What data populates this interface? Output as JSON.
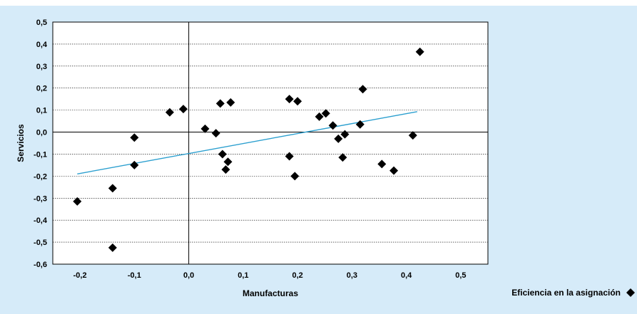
{
  "chart_data": {
    "type": "scatter",
    "xlabel": "Manufacturas",
    "ylabel": "Servicios",
    "xlim": [
      -0.25,
      0.55
    ],
    "ylim": [
      -0.6,
      0.5
    ],
    "x_ticks": [
      "-0,2",
      "-0,1",
      "0,0",
      "0,1",
      "0,2",
      "0,3",
      "0,4",
      "0,5"
    ],
    "y_ticks": [
      "0,5",
      "0,4",
      "0,3",
      "0,2",
      "0,1",
      "0,0",
      "-0,1",
      "-0,2",
      "-0,3",
      "-0,4",
      "-0,5",
      "-0,6"
    ],
    "grid": "horizontal",
    "legend": {
      "placement": "bottom-right",
      "label": "Eficiencia en la asignación"
    },
    "colors": {
      "background": "#d6ebf9",
      "plot": "#ffffff",
      "points": "#000000",
      "trend": "#2b9fcf"
    },
    "series": [
      {
        "name": "Eficiencia en la asignación",
        "points": [
          [
            -0.205,
            -0.315
          ],
          [
            -0.14,
            -0.255
          ],
          [
            -0.14,
            -0.525
          ],
          [
            -0.1,
            -0.025
          ],
          [
            -0.1,
            -0.15
          ],
          [
            -0.035,
            0.09
          ],
          [
            -0.01,
            0.105
          ],
          [
            0.03,
            0.015
          ],
          [
            0.05,
            -0.005
          ],
          [
            0.058,
            0.13
          ],
          [
            0.062,
            -0.1
          ],
          [
            0.068,
            -0.17
          ],
          [
            0.072,
            -0.135
          ],
          [
            0.077,
            0.135
          ],
          [
            0.185,
            0.15
          ],
          [
            0.185,
            -0.11
          ],
          [
            0.195,
            -0.2
          ],
          [
            0.2,
            0.14
          ],
          [
            0.24,
            0.07
          ],
          [
            0.252,
            0.085
          ],
          [
            0.265,
            0.03
          ],
          [
            0.275,
            -0.03
          ],
          [
            0.283,
            -0.115
          ],
          [
            0.287,
            -0.01
          ],
          [
            0.315,
            0.035
          ],
          [
            0.32,
            0.195
          ],
          [
            0.355,
            -0.145
          ],
          [
            0.377,
            -0.175
          ],
          [
            0.412,
            -0.015
          ],
          [
            0.425,
            0.365
          ]
        ]
      }
    ],
    "trendline": {
      "x": [
        -0.205,
        0.42
      ],
      "y": [
        -0.19,
        0.093
      ]
    }
  }
}
